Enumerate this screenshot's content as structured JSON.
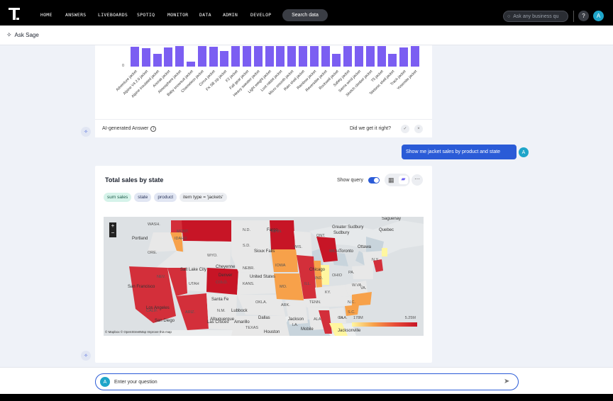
{
  "nav": {
    "items": [
      "HOME",
      "ANSWERS",
      "LIVEBOARDS",
      "SPOTIQ",
      "MONITOR",
      "DATA",
      "ADMIN",
      "DEVELOP"
    ],
    "search_data": "Search data",
    "ask_placeholder": "Ask any business qu",
    "help": "?",
    "avatar": "A"
  },
  "sage": {
    "title": "Ask Sage"
  },
  "chart1": {
    "chart_data": {
      "type": "bar",
      "categories": [
        "Adventure jacket",
        "Alpine V4 2.0 jacket",
        "Alpine insulated jacket",
        "Anorak jacket",
        "Atmosphere jacket",
        "Baby snowsuit jacket",
        "Chameleon jacket",
        "Cirrus jacket",
        "FX SB zip jacket",
        "F2 jacket",
        "Fall gear jacket",
        "Heavy sweater jacket",
        "Light weight jacket",
        "Lost rabbit jacket",
        "Micro smooth jacket",
        "Rain shell jacket",
        "Rainbow jacket",
        "Reversible jacket",
        "Rockwell jacket",
        "Safety jacket",
        "Sierra wind jacket",
        "Sketch climber jacket",
        "T5 jacket",
        "Tektonic shell jacket",
        "Track jacket",
        "Yosemite jacket"
      ],
      "values": [
        0.92,
        0.88,
        0.6,
        0.9,
        0.97,
        0.22,
        0.97,
        0.95,
        0.72,
        0.97,
        0.97,
        0.97,
        0.97,
        0.97,
        0.97,
        0.97,
        0.97,
        0.97,
        0.6,
        0.97,
        0.97,
        0.97,
        0.97,
        0.6,
        0.9,
        0.97
      ],
      "ylabel": "",
      "y_tick": "0"
    }
  },
  "ai_answer": {
    "label": "AI-generated Answer",
    "feedback_prompt": "Did we get it right?"
  },
  "user_message": "Show me jacket sales by product and state",
  "user_avatar": "A",
  "card2": {
    "title": "Total sales by state",
    "show_query": "Show query",
    "chips": [
      "sum sales",
      "state",
      "product",
      "item type = 'jackets'"
    ],
    "legend_min": "178M",
    "legend_max": "5.25M",
    "attribution": "© Mapbox © OpenStreetMap  Improve this map",
    "map_labels": [
      "WASH.",
      "Portland",
      "ORE.",
      "IDAHO",
      "MONT.",
      "WYO.",
      "NEV.",
      "UTAH",
      "COLO.",
      "CALIF.",
      "Salt Lake City",
      "Cheyenne",
      "Denver",
      "San Francisco",
      "Los Angeles",
      "San Diego",
      "ARIZ.",
      "N.M.",
      "Santa Fe",
      "Lubbock",
      "Albuquerque",
      "Las Cruces",
      "Amarillo",
      "OKLA.",
      "Dallas",
      "TEXAS",
      "Houston",
      "N.D.",
      "S.D.",
      "Fargo",
      "Sioux Falls",
      "NEBR.",
      "KANS.",
      "United States",
      "MINN.",
      "WIS.",
      "IOWA",
      "MO.",
      "ARK.",
      "LA.",
      "Jackson",
      "Mobile",
      "ALA.",
      "MICH.",
      "Chicago",
      "ILL.",
      "IND.",
      "OHIO",
      "KY.",
      "TENN.",
      "GA.",
      "S.C.",
      "N.C.",
      "VA.",
      "W.VA.",
      "PA.",
      "N.Y.",
      "Toronto",
      "Ottawa",
      "Quebec",
      "Sudbury",
      "Greater Sudbury",
      "Saguenay",
      "ONT.",
      "Jacksonville",
      "FLA."
    ]
  },
  "input": {
    "placeholder": "Enter your question",
    "avatar": "A"
  }
}
